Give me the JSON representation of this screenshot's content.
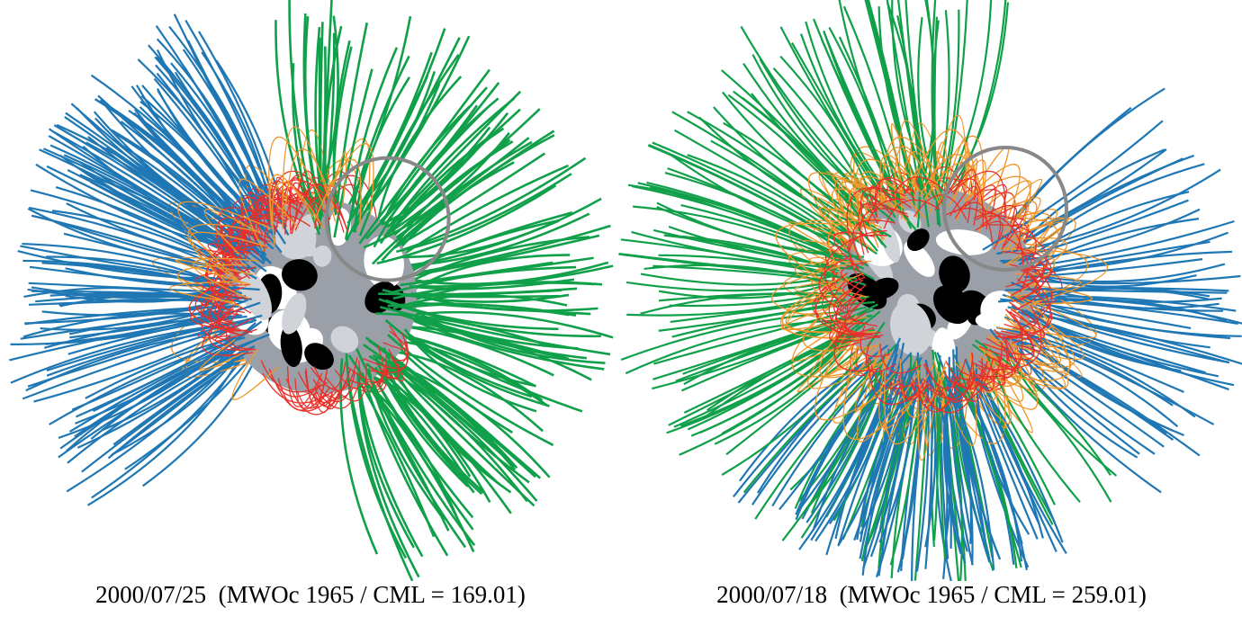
{
  "panels": [
    {
      "caption": "2000/07/25  (MWOc 1965 / CML = 169.01)"
    },
    {
      "caption": "2000/07/18  (MWOc 1965 / CML = 259.01)"
    }
  ]
}
